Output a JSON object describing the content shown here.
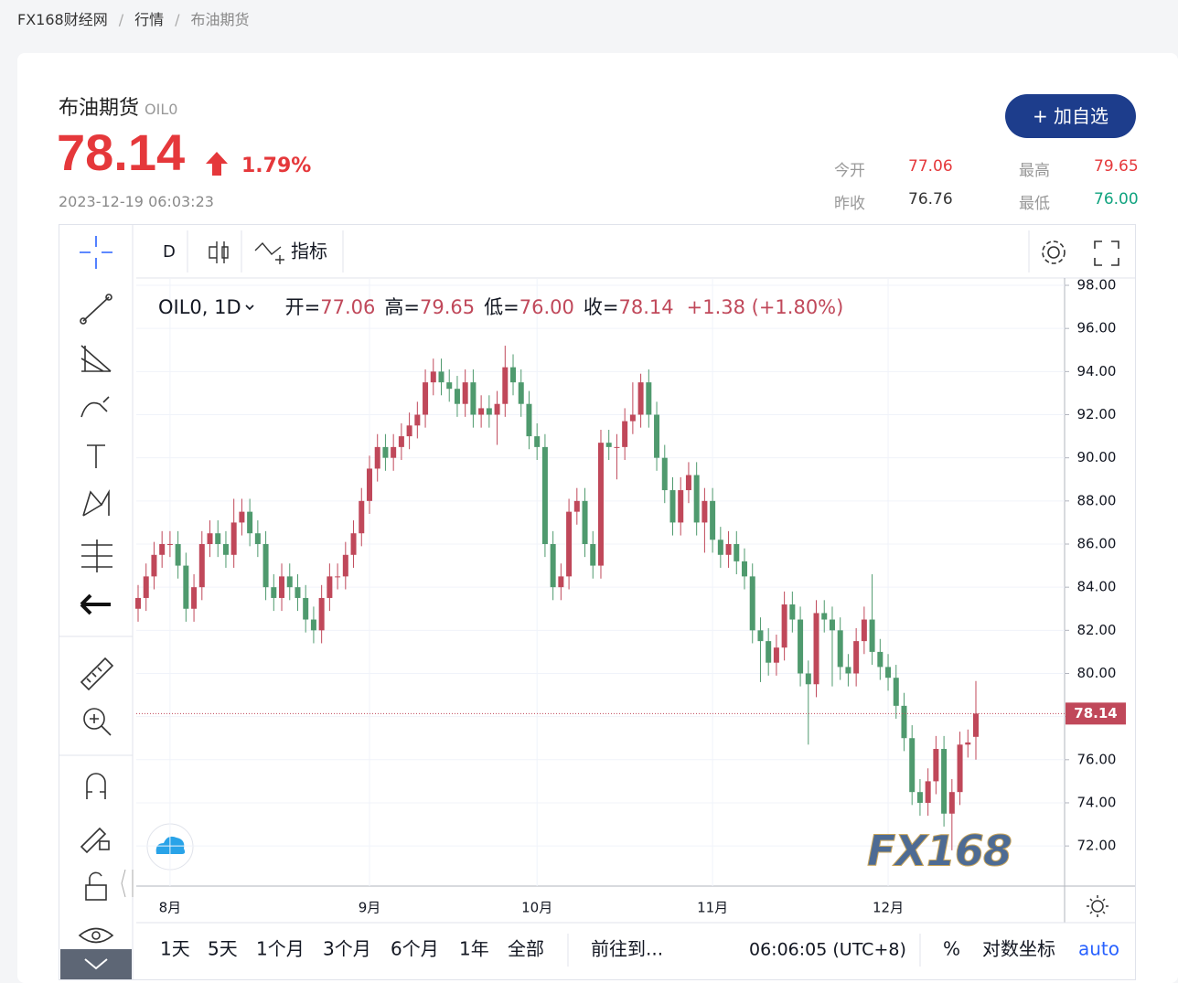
{
  "breadcrumb": [
    "FX168财经网",
    "行情",
    "布油期货"
  ],
  "header": {
    "name": "布油期货",
    "symbol": "OIL0",
    "price": "78.14",
    "change_pct": "1.79%",
    "time": "2023-12-19 06:03:23",
    "button": "+ 加自选",
    "stats": [
      {
        "label": "今开",
        "value": "77.06"
      },
      {
        "label": "最高",
        "value": "79.65"
      },
      {
        "label": "昨收",
        "value": "76.76"
      },
      {
        "label": "最低",
        "value": "76.00"
      }
    ]
  },
  "toolbar": {
    "interval": "D",
    "indicators": "指标"
  },
  "chart_data": {
    "type": "candlestick",
    "legend": {
      "symbol": "OIL0, 1D",
      "items": [
        {
          "label": "开=",
          "value": "77.06"
        },
        {
          "label": "高=",
          "value": "79.65"
        },
        {
          "label": "低=",
          "value": "76.00"
        },
        {
          "label": "收=",
          "value": "78.14"
        }
      ],
      "change": "+1.38 (+1.80%)"
    },
    "categories": [
      null,
      null,
      null,
      null,
      "8月",
      null,
      null,
      null,
      null,
      null,
      null,
      null,
      null,
      null,
      null,
      null,
      null,
      null,
      null,
      null,
      null,
      null,
      null,
      null,
      null,
      null,
      null,
      null,
      null,
      "9月",
      null,
      null,
      null,
      null,
      null,
      null,
      null,
      null,
      null,
      null,
      null,
      null,
      null,
      null,
      null,
      null,
      null,
      null,
      null,
      null,
      "10月",
      null,
      null,
      null,
      null,
      null,
      null,
      null,
      null,
      null,
      null,
      null,
      null,
      null,
      null,
      null,
      null,
      null,
      null,
      null,
      null,
      null,
      "11月",
      null,
      null,
      null,
      null,
      null,
      null,
      null,
      null,
      null,
      null,
      null,
      null,
      null,
      null,
      null,
      null,
      null,
      null,
      null,
      null,
      null,
      "12月",
      null,
      null,
      null,
      null,
      null,
      null,
      null,
      null,
      null,
      null,
      null
    ],
    "open": [
      83,
      83.5,
      84.5,
      85.5,
      86,
      86,
      85,
      83,
      84,
      86,
      86.5,
      86,
      85.5,
      87,
      87.5,
      86.5,
      86,
      84,
      83.5,
      84.5,
      84,
      83.5,
      82.5,
      82,
      83.5,
      84.5,
      84.5,
      85.5,
      86.5,
      88,
      89.5,
      90.5,
      90,
      90.5,
      91,
      91.5,
      92,
      93.5,
      94,
      93.5,
      93.2,
      92.5,
      93.5,
      92,
      92.3,
      92,
      92.5,
      94.2,
      93.5,
      92.5,
      91,
      90.5,
      86,
      84,
      84.5,
      87.5,
      88,
      86,
      85,
      90.7,
      90.5,
      90.5,
      91.7,
      92,
      93.5,
      92,
      90,
      88.5,
      87,
      88.5,
      89.2,
      87,
      88,
      86.2,
      85.5,
      86,
      85.2,
      84.5,
      82,
      81.5,
      80.5,
      81.2,
      83.2,
      82.5,
      80,
      79.5,
      82.8,
      82.5,
      82,
      80.3,
      80,
      81.5,
      82.5,
      81,
      80.3,
      79.8,
      78.5,
      77,
      74.5,
      74,
      75,
      76.5,
      73.5,
      74.5,
      76.7,
      77.06
    ],
    "high": [
      84.1,
      85.1,
      86.1,
      86.6,
      86.6,
      86.6,
      85.6,
      84.6,
      86.6,
      87.1,
      87.1,
      86.6,
      88.1,
      88.1,
      88.1,
      87.1,
      86.6,
      84.6,
      85.1,
      85.1,
      84.6,
      84.1,
      83.1,
      84.1,
      85.1,
      85.1,
      86.1,
      87.1,
      88.6,
      90.1,
      91.1,
      91.1,
      91.1,
      91.6,
      92.1,
      92.6,
      94.1,
      94.6,
      94.6,
      94.1,
      93.8,
      94.1,
      94.1,
      92.9,
      92.9,
      93.1,
      95.2,
      94.8,
      94.1,
      93.1,
      91.6,
      91.1,
      86.6,
      85.1,
      88.1,
      88.6,
      88.6,
      86.6,
      91.3,
      91.3,
      91.1,
      92.3,
      93.5,
      93.9,
      94.1,
      92.6,
      90.6,
      89.1,
      89.1,
      89.8,
      89.8,
      88.6,
      88.6,
      86.8,
      86.6,
      86.6,
      85.8,
      85.1,
      82.6,
      82.1,
      81.8,
      83.8,
      83.8,
      83.1,
      80.6,
      83.4,
      83.4,
      83.1,
      82.6,
      80.9,
      82.1,
      83.1,
      84.6,
      81.6,
      80.9,
      80.4,
      79.1,
      77.6,
      75.1,
      75.6,
      77.1,
      77.1,
      75.1,
      77.3,
      77.4,
      79.65
    ],
    "low": [
      82.4,
      82.9,
      83.9,
      84.9,
      85.4,
      84.4,
      82.4,
      82.4,
      83.4,
      85.4,
      85.4,
      84.9,
      84.9,
      86.4,
      85.9,
      85.4,
      83.4,
      82.9,
      82.9,
      83.4,
      82.9,
      81.9,
      81.4,
      81.4,
      82.9,
      83.9,
      83.9,
      84.9,
      85.9,
      87.4,
      88.9,
      89.4,
      89.4,
      89.9,
      90.4,
      90.9,
      91.4,
      92.9,
      92.9,
      92.6,
      91.9,
      91.9,
      91.4,
      91.4,
      91.4,
      90.6,
      91.9,
      92.9,
      91.9,
      90.4,
      89.9,
      85.4,
      83.4,
      83.4,
      83.9,
      86.9,
      85.4,
      84.4,
      84.4,
      89.9,
      89,
      89.9,
      91.1,
      91.4,
      91.4,
      89.4,
      87.9,
      86.4,
      86.4,
      87.9,
      86.4,
      85.6,
      85.6,
      84.9,
      84.9,
      84.6,
      83.9,
      81.4,
      79.6,
      79.9,
      79.9,
      80.6,
      81.9,
      79.4,
      76.7,
      78.9,
      81.9,
      79.4,
      79.7,
      79.4,
      79.4,
      80.9,
      80.4,
      79.7,
      79.2,
      77.9,
      76.4,
      73.9,
      73.4,
      73.4,
      74.4,
      72.9,
      71.8,
      73.9,
      76.1,
      76
    ],
    "close": [
      83.5,
      84.5,
      85.5,
      86,
      86,
      85,
      83,
      84,
      86,
      86.5,
      86,
      85.5,
      87,
      87.5,
      86.5,
      86,
      84,
      83.5,
      84.5,
      84,
      83.5,
      82.5,
      82,
      83.5,
      84.5,
      84.5,
      85.5,
      86.5,
      88,
      89.5,
      90.5,
      90,
      90.5,
      91,
      91.5,
      92,
      93.5,
      94,
      93.5,
      93.2,
      92.5,
      93.5,
      92,
      92.3,
      92,
      92.5,
      94.2,
      93.5,
      92.5,
      91,
      90.5,
      86,
      84,
      84.5,
      87.5,
      88,
      86,
      85,
      90.7,
      90.5,
      90.5,
      91.7,
      92,
      93.5,
      92,
      90,
      88.5,
      87,
      88.5,
      89.2,
      87,
      88,
      86.2,
      85.5,
      86,
      85.2,
      84.5,
      82,
      81.5,
      80.5,
      81.2,
      83.2,
      82.5,
      80,
      79.5,
      82.8,
      82.5,
      82,
      80.3,
      80,
      81.5,
      82.5,
      81,
      80.3,
      79.8,
      78.5,
      77,
      74.5,
      74,
      75,
      76.5,
      73.5,
      74.5,
      76.7,
      76.8,
      78.14
    ],
    "up_color": "#c0485a",
    "down_color": "#4f9a6e",
    "ylim": [
      70.14,
      98.34
    ],
    "yticks": [
      {
        "value": 72,
        "label": "72.00"
      },
      {
        "value": 74,
        "label": "74.00"
      },
      {
        "value": 76,
        "label": "76.00"
      },
      {
        "value": 78,
        "label": "78.00"
      },
      {
        "value": 80,
        "label": "80.00"
      },
      {
        "value": 82,
        "label": "82.00"
      },
      {
        "value": 84,
        "label": "84.00"
      },
      {
        "value": 86,
        "label": "86.00"
      },
      {
        "value": 88,
        "label": "88.00"
      },
      {
        "value": 90,
        "label": "90.00"
      },
      {
        "value": 92,
        "label": "92.00"
      },
      {
        "value": 94,
        "label": "94.00"
      },
      {
        "value": 96,
        "label": "96.00"
      },
      {
        "value": 98,
        "label": "98.00"
      }
    ],
    "grid": true,
    "watermark": "FX168"
  },
  "bottom_bar": {
    "ranges": [
      "1天",
      "5天",
      "1个月",
      "3个月",
      "6个月",
      "1年",
      "全部"
    ],
    "goto": "前往到...",
    "clock": "06:06:05 (UTC+8)",
    "percent": "%",
    "log": "对数坐标",
    "auto": "auto"
  }
}
